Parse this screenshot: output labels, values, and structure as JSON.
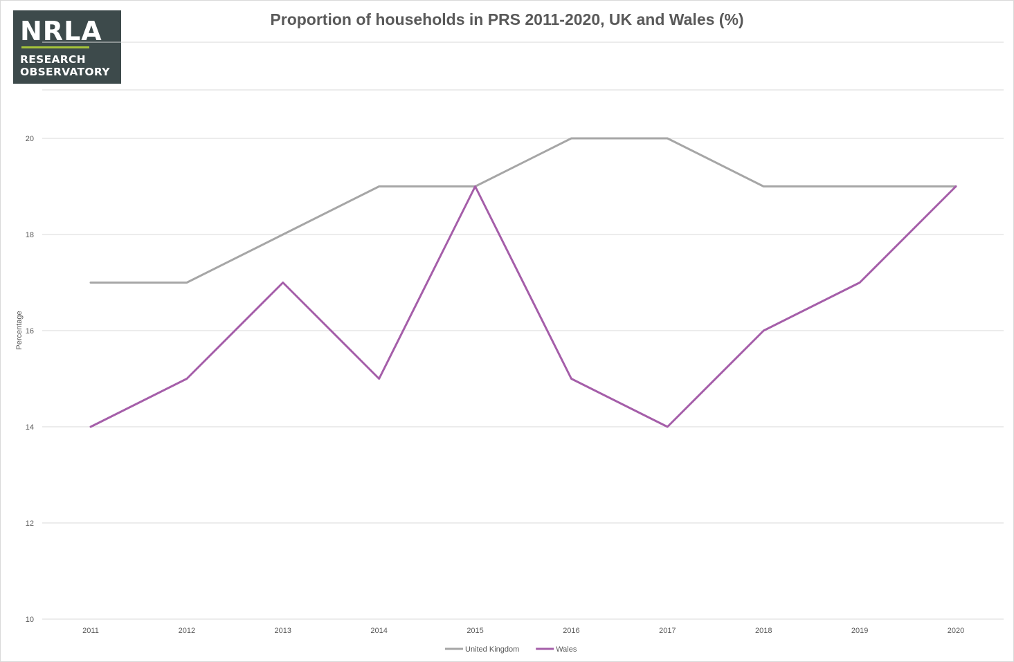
{
  "logo": {
    "mark": "NRLA",
    "line1": "RESEARCH",
    "line2": "OBSERVATORY",
    "background_color": "#3d4a4b",
    "accent_color": "#a6c43a"
  },
  "chart_data": {
    "type": "line",
    "title": "Proportion of households in PRS 2011-2020, UK and Wales (%)",
    "xlabel": "",
    "ylabel": "Percentage",
    "categories": [
      "2011",
      "2012",
      "2013",
      "2014",
      "2015",
      "2016",
      "2017",
      "2018",
      "2019",
      "2020"
    ],
    "ylim": [
      10,
      20
    ],
    "yticks": [
      10,
      12,
      14,
      16,
      18,
      20
    ],
    "grid": true,
    "legend": "bottom",
    "series": [
      {
        "name": "United Kingdom",
        "color": "#a6a6a6",
        "values": [
          17,
          17,
          18,
          19,
          19,
          20,
          20,
          19,
          19,
          19
        ]
      },
      {
        "name": "Wales",
        "color": "#a55ea9",
        "values": [
          14,
          15,
          17,
          15,
          19,
          15,
          14,
          16,
          17,
          19
        ]
      }
    ]
  }
}
